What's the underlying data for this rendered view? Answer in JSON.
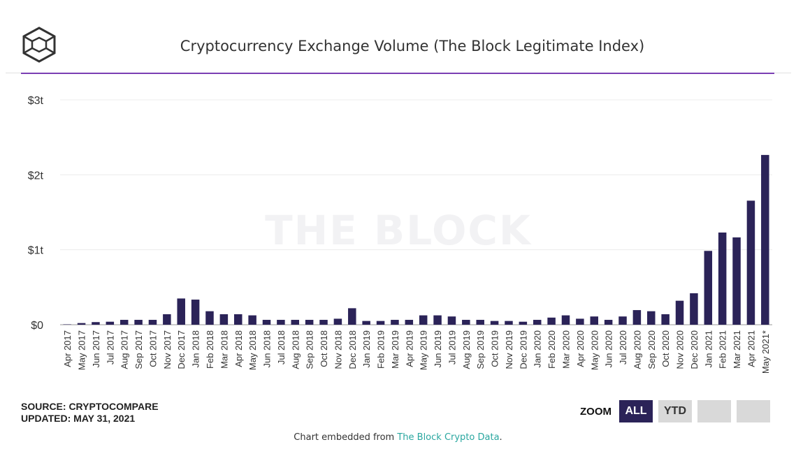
{
  "header": {
    "title": "Cryptocurrency Exchange Volume (The Block Legitimate Index)",
    "logo_icon": "the-block-cube-logo",
    "accent_color": "#7b3fb3"
  },
  "watermark": "THE BLOCK",
  "source": {
    "line1": "SOURCE: CRYPTOCOMPARE",
    "line2": "UPDATED: MAY 31, 2021"
  },
  "zoom": {
    "label": "ZOOM",
    "buttons": [
      {
        "label": "ALL",
        "active": true
      },
      {
        "label": "YTD",
        "active": false
      },
      {
        "label": "",
        "active": false
      },
      {
        "label": "",
        "active": false
      }
    ]
  },
  "footer": {
    "prefix": "Chart embedded from ",
    "link": "The Block Crypto Data",
    "suffix": "."
  },
  "chart_data": {
    "type": "bar",
    "title": "Cryptocurrency Exchange Volume (The Block Legitimate Index)",
    "xlabel": "",
    "ylabel": "",
    "ylim": [
      0,
      3
    ],
    "y_ticks": [
      {
        "value": 0,
        "label": "$0"
      },
      {
        "value": 1,
        "label": "$1t"
      },
      {
        "value": 2,
        "label": "$2t"
      },
      {
        "value": 3,
        "label": "$3t"
      }
    ],
    "grid": true,
    "bar_color": "#2b2358",
    "categories": [
      "Apr 2017",
      "May 2017",
      "Jun 2017",
      "Jul 2017",
      "Aug 2017",
      "Sep 2017",
      "Oct 2017",
      "Nov 2017",
      "Dec 2017",
      "Jan 2018",
      "Feb 2018",
      "Mar 2018",
      "Apr 2018",
      "May 2018",
      "Jun 2018",
      "Jul 2018",
      "Aug 2018",
      "Sep 2018",
      "Oct 2018",
      "Nov 2018",
      "Dec 2018",
      "Jan 2019",
      "Feb 2019",
      "Mar 2019",
      "Apr 2019",
      "May 2019",
      "Jun 2019",
      "Jul 2019",
      "Aug 2019",
      "Sep 2019",
      "Oct 2019",
      "Nov 2019",
      "Dec 2019",
      "Jan 2020",
      "Feb 2020",
      "Mar 2020",
      "Apr 2020",
      "May 2020",
      "Jun 2020",
      "Jul 2020",
      "Aug 2020",
      "Sep 2020",
      "Oct 2020",
      "Nov 2020",
      "Dec 2020",
      "Jan 2021",
      "Feb 2021",
      "Mar 2021",
      "Apr 2021",
      "May 2021*"
    ],
    "values": [
      0.005,
      0.022,
      0.035,
      0.04,
      0.065,
      0.065,
      0.065,
      0.14,
      0.35,
      0.335,
      0.18,
      0.14,
      0.14,
      0.125,
      0.065,
      0.065,
      0.065,
      0.065,
      0.065,
      0.08,
      0.22,
      0.05,
      0.05,
      0.065,
      0.065,
      0.125,
      0.125,
      0.11,
      0.065,
      0.065,
      0.05,
      0.05,
      0.04,
      0.065,
      0.095,
      0.125,
      0.08,
      0.11,
      0.065,
      0.11,
      0.195,
      0.18,
      0.14,
      0.32,
      0.42,
      0.985,
      1.23,
      1.165,
      1.655,
      2.265
    ]
  }
}
